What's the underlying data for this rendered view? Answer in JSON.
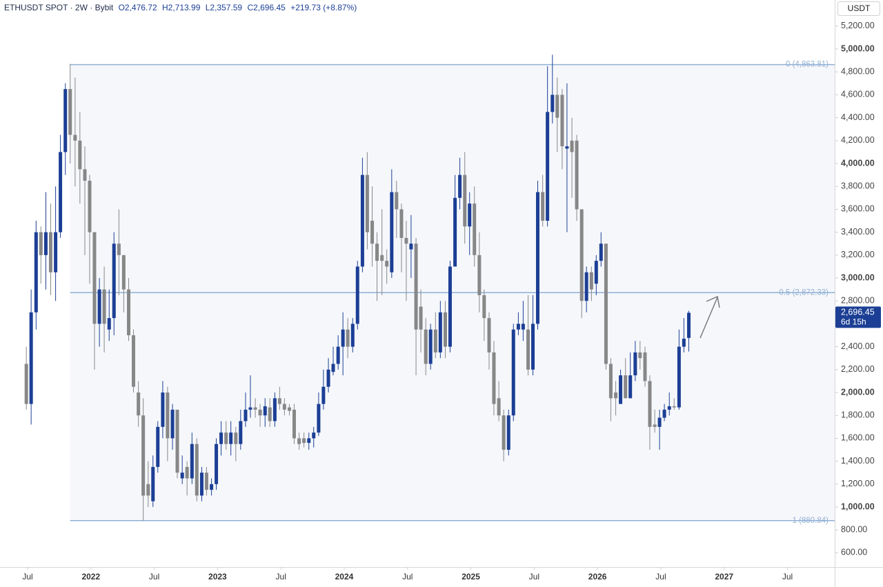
{
  "chart_data": {
    "type": "candlestick",
    "symbol": "ETHUSDT SPOT · 2W · Bybit",
    "ohlc_labels": {
      "open": "O2,476.72",
      "high": "H2,713.99",
      "low": "L2,357.59",
      "close": "C2,696.45",
      "change": "+219.73 (+8.87%)"
    },
    "currency": "USDT",
    "last_price_label": "2,696.45",
    "countdown": "6d 15h",
    "up_color": "#1c3f95",
    "down_color": "#878787",
    "xlim": [
      2021.282,
      2027.873
    ],
    "xticks": [
      {
        "value": 2021.5,
        "label": "Jul"
      },
      2022,
      {
        "value": 2022.5,
        "label": "Jul"
      },
      2023,
      {
        "value": 2023.5,
        "label": "Jul"
      },
      2024,
      {
        "value": 2024.5,
        "label": "Jul"
      },
      2025,
      {
        "value": 2025.5,
        "label": "Jul"
      },
      2026,
      {
        "value": 2026.5,
        "label": "Jul"
      },
      2027,
      {
        "value": 2027.5,
        "label": "Jul"
      }
    ],
    "ylim": [
      476,
      5428
    ],
    "yticks": [
      {
        "value": 600,
        "label": "600.00"
      },
      {
        "value": 800,
        "label": "800.00"
      },
      {
        "value": 1000,
        "label": "1,000.00"
      },
      {
        "value": 1200,
        "label": "1,200.00"
      },
      {
        "value": 1400,
        "label": "1,400.00"
      },
      {
        "value": 1600,
        "label": "1,600.00"
      },
      {
        "value": 1800,
        "label": "1,800.00"
      },
      {
        "value": 2000,
        "label": "2,000.00"
      },
      {
        "value": 2200,
        "label": "2,200.00"
      },
      {
        "value": 2400,
        "label": "2,400.00"
      },
      {
        "value": 2600,
        "label": "2,600.00"
      },
      {
        "value": 2800,
        "label": "2,800.00"
      },
      {
        "value": 3000,
        "label": "3,000.00"
      },
      {
        "value": 3200,
        "label": "3,200.00"
      },
      {
        "value": 3400,
        "label": "3,400.00"
      },
      {
        "value": 3600,
        "label": "3,600.00"
      },
      {
        "value": 3800,
        "label": "3,800.00"
      },
      {
        "value": 4000,
        "label": "4,000.00"
      },
      {
        "value": 4200,
        "label": "4,200.00"
      },
      {
        "value": 4400,
        "label": "4,400.00"
      },
      {
        "value": 4600,
        "label": "4,600.00"
      },
      {
        "value": 4800,
        "label": "4,800.00"
      },
      {
        "value": 5000,
        "label": "5,000.00"
      },
      {
        "value": 5200,
        "label": "5,200.00"
      }
    ],
    "fib": {
      "start_x": 2021.836,
      "color": "#8fb0d6",
      "levels": [
        {
          "price": 4863.81,
          "label": "0 (4,863.81)"
        },
        {
          "price": 2872.33,
          "label": "0.5 (2,872.33)"
        },
        {
          "price": 880.84,
          "label": "1 (880.84)"
        }
      ]
    },
    "x": [
      2021.49,
      2021.528,
      2021.567,
      2021.605,
      2021.644,
      2021.682,
      2021.721,
      2021.759,
      2021.798,
      2021.836,
      2021.875,
      2021.913,
      2021.952,
      2021.99,
      2022.028,
      2022.067,
      2022.105,
      2022.144,
      2022.182,
      2022.221,
      2022.259,
      2022.298,
      2022.336,
      2022.375,
      2022.413,
      2022.452,
      2022.49,
      2022.528,
      2022.567,
      2022.605,
      2022.644,
      2022.682,
      2022.721,
      2022.759,
      2022.798,
      2022.836,
      2022.875,
      2022.913,
      2022.952,
      2022.99,
      2023.028,
      2023.067,
      2023.105,
      2023.144,
      2023.182,
      2023.221,
      2023.259,
      2023.298,
      2023.336,
      2023.375,
      2023.413,
      2023.452,
      2023.49,
      2023.528,
      2023.567,
      2023.605,
      2023.644,
      2023.682,
      2023.721,
      2023.759,
      2023.798,
      2023.836,
      2023.875,
      2023.913,
      2023.952,
      2023.99,
      2024.028,
      2024.067,
      2024.105,
      2024.144,
      2024.182,
      2024.221,
      2024.259,
      2024.298,
      2024.336,
      2024.375,
      2024.413,
      2024.452,
      2024.49,
      2024.528,
      2024.567,
      2024.605,
      2024.644,
      2024.682,
      2024.721,
      2024.759,
      2024.798,
      2024.836,
      2024.875,
      2024.913,
      2024.952,
      2024.99,
      2025.028,
      2025.067,
      2025.105,
      2025.144,
      2025.182,
      2025.221,
      2025.259,
      2025.298,
      2025.336,
      2025.375,
      2025.413,
      2025.452,
      2025.49,
      2025.528,
      2025.567,
      2025.605,
      2025.644,
      2025.682,
      2025.721,
      2025.759,
      2025.798,
      2025.836,
      2025.875,
      2025.913,
      2025.952,
      2025.99,
      2026.028,
      2026.067,
      2026.105,
      2026.144,
      2026.182,
      2026.221,
      2026.259,
      2026.298,
      2026.336,
      2026.375,
      2026.413,
      2026.452,
      2026.49,
      2026.528,
      2026.567,
      2026.605,
      2026.644,
      2026.682,
      2026.721
    ],
    "open": [
      2250,
      1900,
      2700,
      3400,
      3200,
      3400,
      3050,
      3400,
      4100,
      4650,
      4250,
      4200,
      3950,
      3850,
      3400,
      2600,
      2900,
      2550,
      2650,
      3300,
      3200,
      2900,
      2500,
      2000,
      1800,
      1200,
      1050,
      1350,
      1700,
      2000,
      1600,
      1850,
      1250,
      1350,
      1250,
      1550,
      1100,
      1300,
      1150,
      1200,
      1550,
      1650,
      1550,
      1650,
      1550,
      1750,
      1850,
      1870,
      1850,
      1800,
      1870,
      1750,
      1950,
      1900,
      1870,
      1850,
      1600,
      1600,
      1560,
      1600,
      1650,
      1900,
      2050,
      2180,
      2250,
      2400,
      2550,
      2400,
      2600,
      3100,
      3900,
      3500,
      3300,
      3200,
      3150,
      3050,
      3750,
      3600,
      3350,
      3250,
      3300,
      2750,
      2550,
      2250,
      2550,
      2350,
      2700,
      2400,
      3100,
      3700,
      3900,
      3450,
      3650,
      3200,
      2850,
      2650,
      2350,
      1950,
      1800,
      1500,
      1800,
      2550,
      2550,
      2550,
      2200,
      2600,
      3750,
      3500,
      4450,
      4600,
      4600,
      4130,
      4200,
      4200,
      3600,
      2800,
      3050,
      2950,
      3150,
      3300,
      2250,
      2000,
      1900,
      2150,
      1950,
      2150,
      2350,
      2350,
      2100,
      1720,
      1700,
      1780,
      1850,
      1880,
      1870,
      2400,
      2476.72
    ],
    "high": [
      2400,
      2900,
      3500,
      3450,
      3750,
      3650,
      3800,
      4250,
      4700,
      4870,
      4750,
      4450,
      4150,
      3900,
      3400,
      3000,
      3100,
      2900,
      3400,
      3600,
      3200,
      3000,
      2550,
      2100,
      1950,
      1400,
      1450,
      1750,
      2100,
      2050,
      1900,
      1850,
      1450,
      1400,
      1650,
      1600,
      1350,
      1350,
      1250,
      1600,
      1750,
      1750,
      1750,
      1700,
      1850,
      2000,
      2150,
      1950,
      1900,
      1950,
      1950,
      2000,
      2050,
      1950,
      1900,
      1900,
      1650,
      1650,
      1650,
      1700,
      2000,
      2200,
      2300,
      2400,
      2500,
      2700,
      2650,
      2650,
      3150,
      4050,
      4100,
      3800,
      3400,
      3600,
      3250,
      3950,
      3850,
      3650,
      3500,
      3550,
      3350,
      2900,
      2650,
      2600,
      2700,
      2800,
      2800,
      3150,
      3900,
      4050,
      4100,
      3750,
      3800,
      3400,
      2900,
      2700,
      2450,
      2100,
      1850,
      1850,
      2600,
      2700,
      2800,
      2850,
      2850,
      3850,
      3900,
      4850,
      4950,
      4750,
      4650,
      4700,
      4400,
      4250,
      3600,
      3100,
      3100,
      3200,
      3400,
      3300,
      2300,
      2100,
      2200,
      2300,
      2350,
      2450,
      2450,
      2400,
      2150,
      1850,
      1850,
      1900,
      2000,
      1950,
      2550,
      2650,
      2713.99
    ],
    "low": [
      1850,
      1720,
      2550,
      2950,
      2900,
      2850,
      2800,
      3350,
      3900,
      4000,
      3800,
      3650,
      3200,
      2950,
      2200,
      2400,
      2350,
      2450,
      2500,
      2850,
      2700,
      2450,
      2000,
      1700,
      880,
      1000,
      1000,
      1300,
      1600,
      1400,
      1500,
      1250,
      1200,
      1100,
      1200,
      1050,
      1050,
      1100,
      1100,
      1150,
      1450,
      1500,
      1450,
      1400,
      1500,
      1700,
      1780,
      1780,
      1700,
      1700,
      1700,
      1700,
      1850,
      1800,
      1800,
      1550,
      1500,
      1520,
      1500,
      1520,
      1620,
      1850,
      2000,
      2150,
      2200,
      2150,
      2300,
      2350,
      2550,
      3050,
      3250,
      3100,
      2800,
      2850,
      2950,
      3000,
      3350,
      3050,
      2800,
      3000,
      2150,
      2350,
      2150,
      2200,
      2300,
      2300,
      2300,
      2350,
      3100,
      3600,
      3300,
      3200,
      3100,
      2700,
      2450,
      2200,
      1800,
      1750,
      1400,
      1450,
      1750,
      2500,
      2450,
      2150,
      2150,
      2550,
      3450,
      3450,
      4350,
      4100,
      3950,
      3400,
      3700,
      3500,
      2650,
      2700,
      2800,
      2850,
      3100,
      2200,
      1750,
      1800,
      1900,
      1950,
      1950,
      2100,
      2200,
      2050,
      1500,
      1650,
      1500,
      1750,
      1800,
      1850,
      1850,
      2350,
      2357.59
    ],
    "close": [
      1900,
      2700,
      3400,
      3200,
      3400,
      3050,
      3400,
      4100,
      4650,
      4250,
      4200,
      3950,
      3850,
      3400,
      2600,
      2900,
      2600,
      2650,
      3300,
      3200,
      2900,
      2500,
      2050,
      1800,
      1100,
      1100,
      1350,
      1700,
      2000,
      1600,
      1850,
      1300,
      1300,
      1250,
      1550,
      1100,
      1300,
      1150,
      1200,
      1550,
      1650,
      1550,
      1650,
      1550,
      1750,
      1850,
      1870,
      1850,
      1800,
      1880,
      1750,
      1950,
      1900,
      1850,
      1840,
      1600,
      1550,
      1560,
      1600,
      1650,
      1900,
      2050,
      2200,
      2250,
      2400,
      2550,
      2400,
      2600,
      3100,
      3900,
      3400,
      3300,
      3150,
      3150,
      3100,
      3750,
      3600,
      3350,
      3300,
      3300,
      2550,
      2550,
      2250,
      2550,
      2350,
      2700,
      2400,
      3100,
      3700,
      3900,
      3450,
      3650,
      3200,
      2850,
      2650,
      2350,
      1900,
      1800,
      1500,
      1800,
      2550,
      2600,
      2600,
      2200,
      2600,
      3750,
      3500,
      4450,
      4600,
      4400,
      4150,
      4150,
      4100,
      3600,
      2800,
      3050,
      2900,
      3150,
      3300,
      2250,
      1950,
      1950,
      2150,
      1950,
      2150,
      2350,
      2300,
      2100,
      1700,
      1700,
      1780,
      1850,
      1880,
      1870,
      2400,
      2470,
      2696.45
    ]
  }
}
